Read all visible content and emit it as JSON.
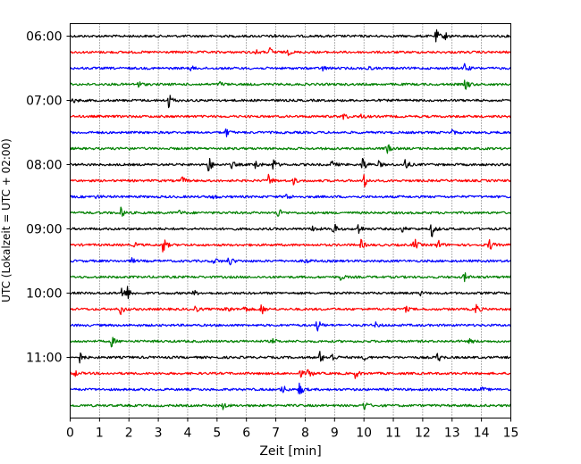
{
  "chart_data": {
    "type": "line",
    "title": "",
    "xlabel": "Zeit  [min]",
    "ylabel": "UTC (Lokalzeit = UTC + 02:00)",
    "xlim": [
      0,
      15
    ],
    "x_ticks": [
      "0",
      "1",
      "2",
      "3",
      "4",
      "5",
      "6",
      "7",
      "8",
      "9",
      "10",
      "11",
      "12",
      "13",
      "14",
      "15"
    ],
    "y_tick_labels": [
      "06:00",
      "07:00",
      "08:00",
      "09:00",
      "10:00",
      "11:00"
    ],
    "grid": "vertical-dotted",
    "trace_colors": [
      "#000000",
      "#ff0000",
      "#0000ff",
      "#008000"
    ],
    "series": [
      {
        "start": "06:00",
        "events": [
          [
            12.45,
            0.9
          ],
          [
            12.75,
            0.6
          ],
          [
            6.9,
            0.3
          ]
        ]
      },
      {
        "start": "06:15",
        "events": [
          [
            6.8,
            0.6
          ],
          [
            7.4,
            0.35
          ],
          [
            6.3,
            0.3
          ]
        ]
      },
      {
        "start": "06:30",
        "events": [
          [
            13.4,
            0.8
          ],
          [
            10.1,
            0.35
          ],
          [
            4.1,
            0.3
          ],
          [
            8.6,
            0.3
          ]
        ]
      },
      {
        "start": "06:45",
        "events": [
          [
            13.45,
            1.0
          ],
          [
            2.3,
            0.5
          ],
          [
            5.1,
            0.3
          ]
        ]
      },
      {
        "start": "07:00",
        "events": [
          [
            3.35,
            1.0
          ],
          [
            0.1,
            0.3
          ]
        ]
      },
      {
        "start": "07:15",
        "events": [
          [
            9.3,
            0.5
          ],
          [
            9.9,
            0.35
          ]
        ]
      },
      {
        "start": "07:30",
        "events": [
          [
            5.3,
            0.6
          ],
          [
            13.0,
            0.3
          ]
        ]
      },
      {
        "start": "07:45",
        "events": [
          [
            10.75,
            1.0
          ],
          [
            1.9,
            0.3
          ]
        ]
      },
      {
        "start": "08:00",
        "events": [
          [
            4.7,
            1.2
          ],
          [
            6.3,
            0.7
          ],
          [
            6.9,
            0.8
          ],
          [
            9.95,
            1.1
          ],
          [
            11.4,
            0.8
          ],
          [
            8.9,
            0.6
          ],
          [
            5.5,
            0.5
          ],
          [
            10.5,
            0.4
          ]
        ]
      },
      {
        "start": "08:15",
        "events": [
          [
            10.0,
            1.0
          ],
          [
            6.75,
            0.8
          ],
          [
            3.8,
            0.5
          ],
          [
            7.6,
            0.4
          ]
        ]
      },
      {
        "start": "08:30",
        "events": [
          [
            4.8,
            0.6
          ],
          [
            7.35,
            0.5
          ],
          [
            0.9,
            0.25
          ]
        ]
      },
      {
        "start": "08:45",
        "events": [
          [
            1.7,
            0.8
          ],
          [
            7.05,
            0.8
          ],
          [
            3.7,
            0.3
          ]
        ]
      },
      {
        "start": "09:00",
        "events": [
          [
            8.95,
            1.0
          ],
          [
            12.3,
            1.1
          ],
          [
            9.8,
            0.8
          ],
          [
            8.25,
            0.5
          ],
          [
            11.3,
            0.4
          ]
        ]
      },
      {
        "start": "09:15",
        "events": [
          [
            3.15,
            1.2
          ],
          [
            9.9,
            0.6
          ],
          [
            11.7,
            1.0
          ],
          [
            12.5,
            0.8
          ],
          [
            14.25,
            0.9
          ],
          [
            2.2,
            0.3
          ]
        ]
      },
      {
        "start": "09:30",
        "events": [
          [
            5.4,
            0.8
          ],
          [
            4.9,
            0.5
          ],
          [
            8.0,
            0.35
          ],
          [
            2.1,
            0.3
          ]
        ]
      },
      {
        "start": "09:45",
        "events": [
          [
            13.4,
            0.7
          ],
          [
            9.2,
            0.4
          ]
        ]
      },
      {
        "start": "10:00",
        "events": [
          [
            1.75,
            0.9
          ],
          [
            1.95,
            0.8
          ],
          [
            4.2,
            0.35
          ],
          [
            11.9,
            0.3
          ]
        ]
      },
      {
        "start": "10:15",
        "events": [
          [
            1.7,
            0.8
          ],
          [
            4.2,
            0.7
          ],
          [
            5.3,
            0.9
          ],
          [
            6.5,
            0.8
          ],
          [
            13.8,
            0.8
          ],
          [
            5.9,
            0.6
          ],
          [
            11.4,
            0.4
          ]
        ]
      },
      {
        "start": "10:30",
        "events": [
          [
            8.4,
            0.9
          ],
          [
            10.4,
            0.3
          ]
        ]
      },
      {
        "start": "10:45",
        "events": [
          [
            1.4,
            0.7
          ],
          [
            6.9,
            0.3
          ],
          [
            13.6,
            0.3
          ]
        ]
      },
      {
        "start": "11:00",
        "events": [
          [
            0.3,
            0.9
          ],
          [
            8.5,
            0.8
          ],
          [
            8.9,
            0.7
          ],
          [
            12.5,
            0.7
          ],
          [
            10.0,
            0.4
          ]
        ]
      },
      {
        "start": "11:15",
        "events": [
          [
            7.8,
            0.6
          ],
          [
            8.1,
            0.8
          ],
          [
            9.7,
            0.6
          ],
          [
            0.15,
            0.4
          ]
        ]
      },
      {
        "start": "11:30",
        "events": [
          [
            7.2,
            0.8
          ],
          [
            7.8,
            1.0
          ],
          [
            14.0,
            0.3
          ]
        ]
      },
      {
        "start": "11:45",
        "events": [
          [
            10.0,
            0.7
          ],
          [
            5.2,
            0.4
          ]
        ]
      }
    ]
  }
}
